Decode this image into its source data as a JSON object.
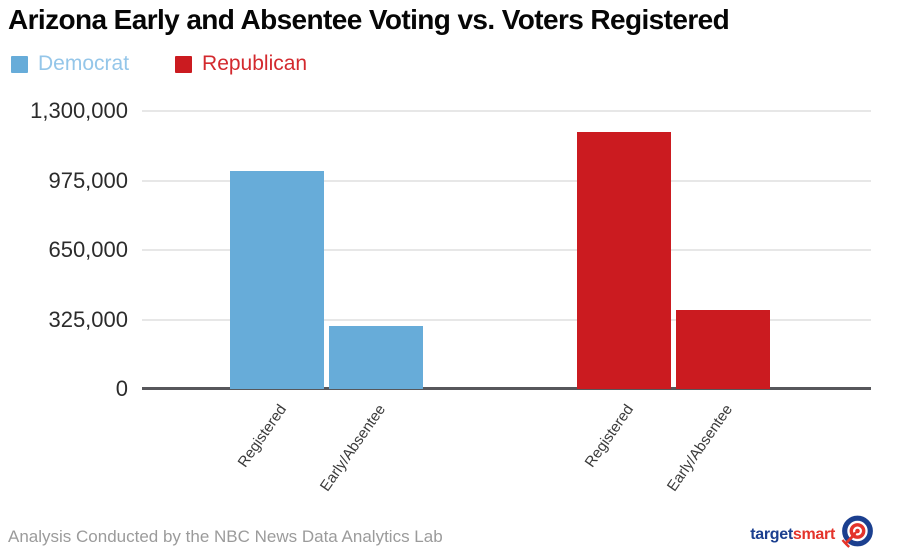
{
  "chart_data": {
    "type": "bar",
    "title": "Arizona Early and Absentee Voting vs. Voters Registered",
    "categories": [
      "Registered",
      "Early/Absentee"
    ],
    "series": [
      {
        "name": "Democrat",
        "color": "#67acd9",
        "label_color": "#94c6e9",
        "values": [
          1020000,
          295000
        ]
      },
      {
        "name": "Republican",
        "color": "#cb1b20",
        "label_color": "#d3292e",
        "values": [
          1200000,
          370000
        ]
      }
    ],
    "ylim": [
      0,
      1300000
    ],
    "yticks": [
      0,
      325000,
      650000,
      975000,
      1300000
    ],
    "ytick_labels": [
      "0",
      "325,000",
      "650,000",
      "975,000",
      "1,300,000"
    ],
    "grid": true,
    "legend_position": "top-left",
    "colors": {
      "gridline": "#e7e7e7",
      "axis_line": "#57575b",
      "ytick_text": "#2b2b2b",
      "xtick_text": "#3a3a3a",
      "title_text": "#060606"
    }
  },
  "footer": {
    "attribution": "Analysis Conducted by the NBC News Data Analytics Lab",
    "logo_text_target": "target",
    "logo_text_smart": "smart",
    "logo_blue": "#1b3f8f",
    "logo_red": "#e4342b"
  }
}
